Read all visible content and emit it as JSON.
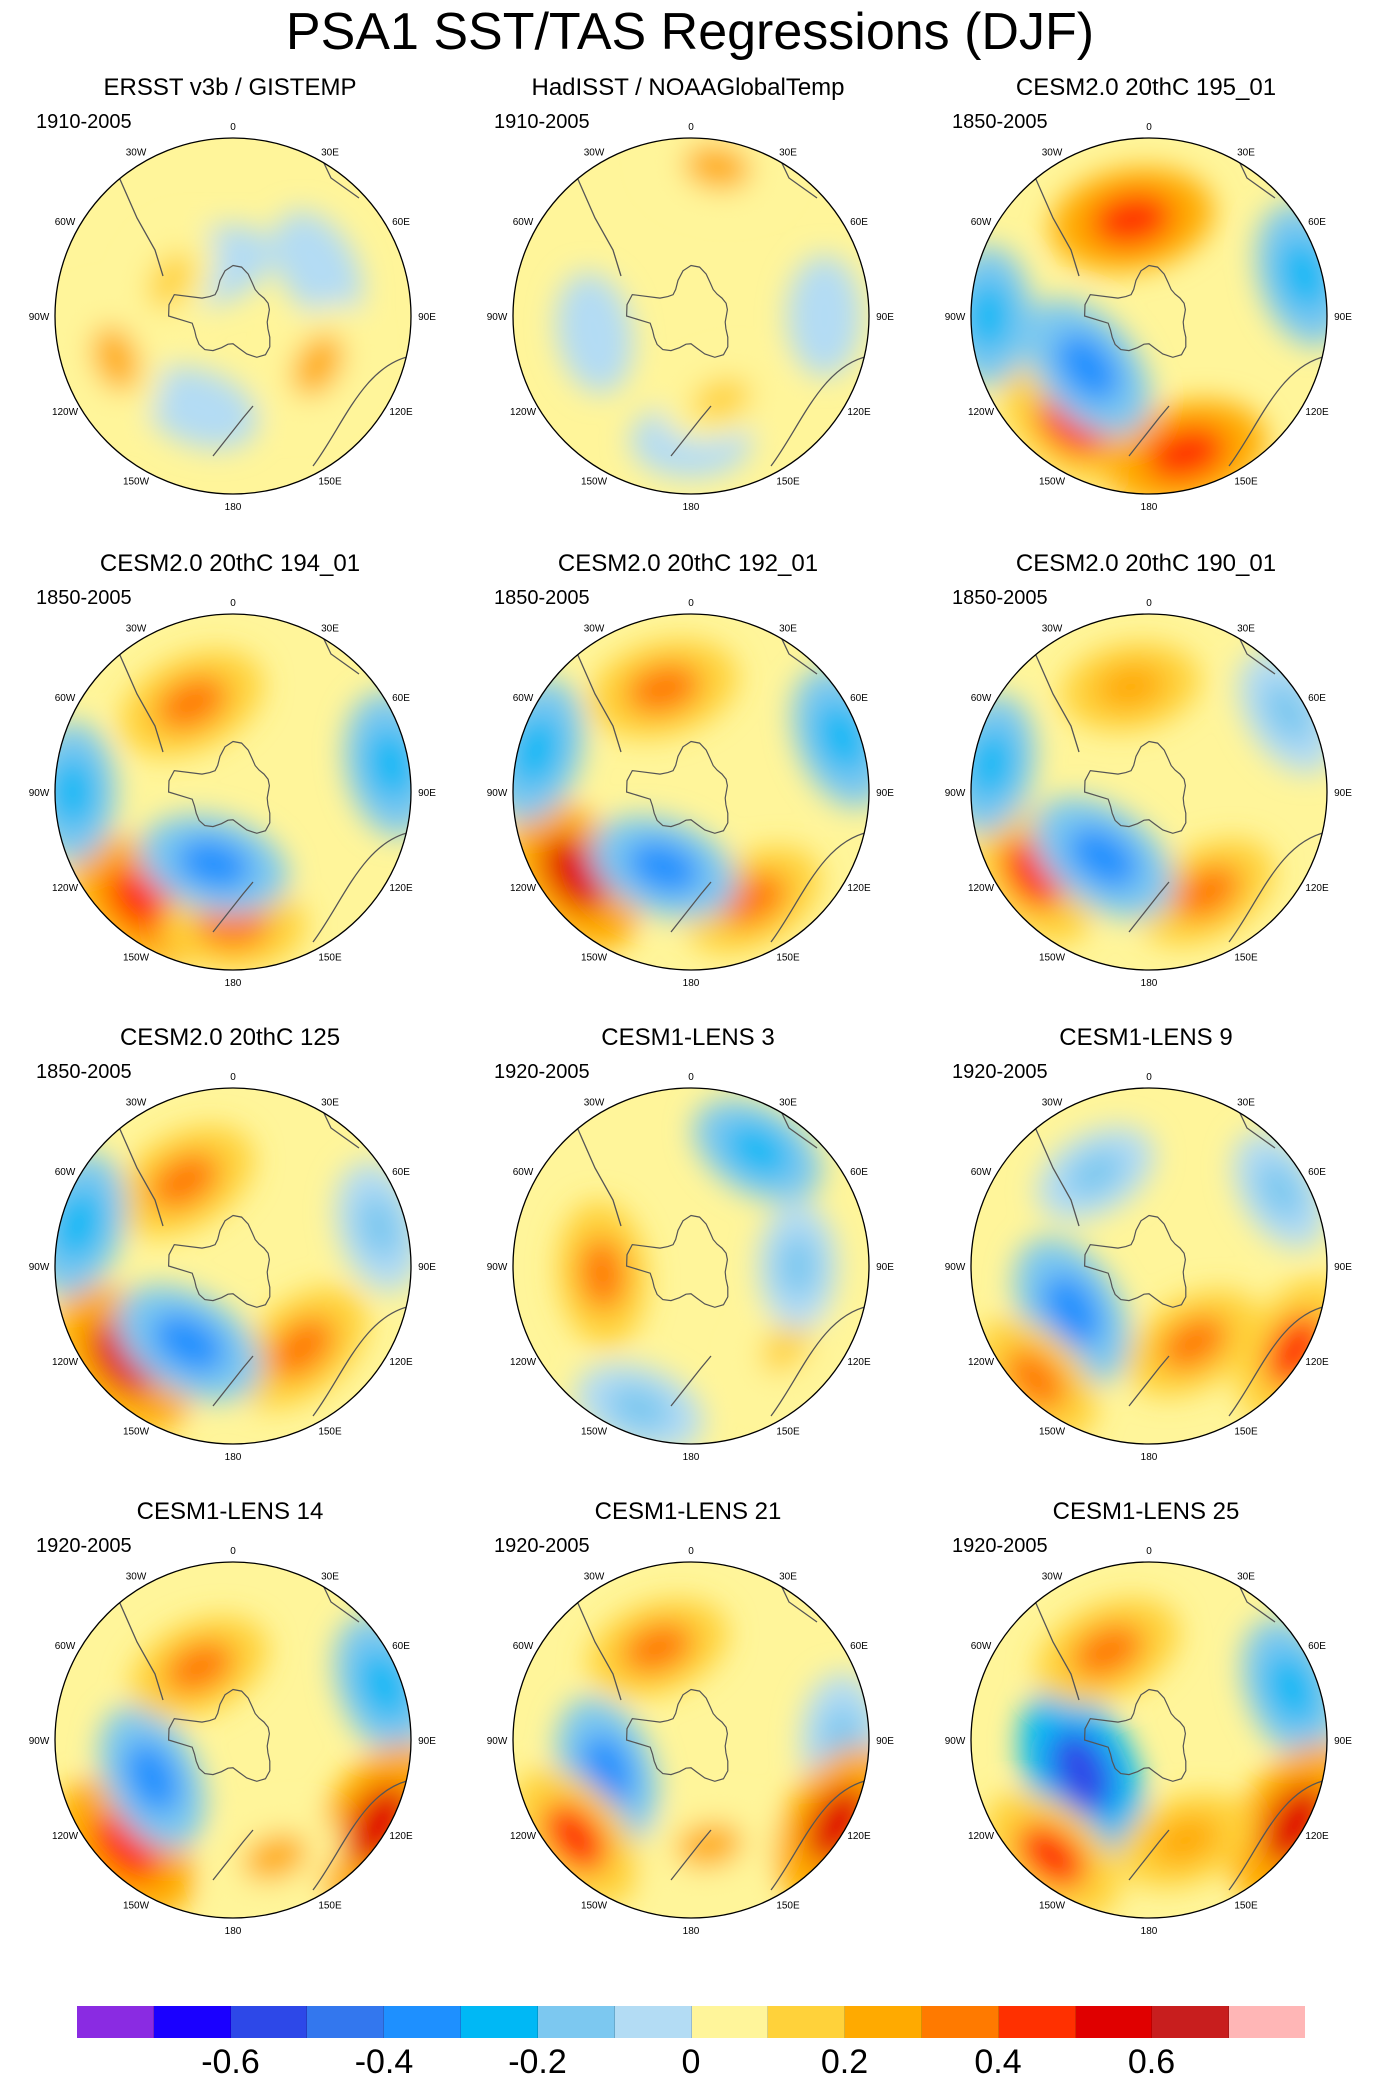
{
  "title": "PSA1 SST/TAS Regressions (DJF)",
  "lon_labels": [
    "0",
    "30E",
    "60E",
    "90E",
    "120E",
    "150E",
    "180",
    "150W",
    "120W",
    "90W",
    "60W",
    "30W"
  ],
  "colors": {
    "ocean_neutral": "#fff59a",
    "land": "#ffffff",
    "coast": "#555555"
  },
  "chart_data": {
    "type": "heatmap",
    "projection": "south-polar-stereographic",
    "field": "PSA1 SST/TAS regression",
    "season": "DJF",
    "colorbar": {
      "levels": [
        -0.7,
        -0.6,
        -0.5,
        -0.4,
        -0.3,
        -0.2,
        -0.1,
        0,
        0.1,
        0.2,
        0.3,
        0.4,
        0.5,
        0.6,
        0.7
      ],
      "colors": [
        "#8a2be2",
        "#1a00ff",
        "#2d48e8",
        "#3377ee",
        "#1e90ff",
        "#00b8f5",
        "#7cc8f0",
        "#b3dcf4",
        "#fff59a",
        "#ffd23a",
        "#ffaa00",
        "#ff7a00",
        "#ff3000",
        "#e00000",
        "#c81e1e",
        "#ffb6b6"
      ],
      "tick_labels": [
        "-0.6",
        "-0.4",
        "-0.2",
        "0",
        "0.2",
        "0.4",
        "0.6"
      ],
      "tick_values": [
        -0.6,
        -0.4,
        -0.2,
        0,
        0.2,
        0.4,
        0.6
      ]
    },
    "panels": [
      {
        "title": "ERSST v3b / GISTEMP",
        "years": "1910-2005",
        "blobs": [
          {
            "lon": 200,
            "r": 0.55,
            "v": -0.1
          },
          {
            "lon": 340,
            "r": 0.3,
            "v": -0.1
          },
          {
            "lon": 60,
            "r": 0.55,
            "v": -0.1
          },
          {
            "lon": 250,
            "r": 0.7,
            "v": 0.2
          },
          {
            "lon": 120,
            "r": 0.55,
            "v": 0.2
          },
          {
            "lon": 300,
            "r": 0.4,
            "v": 0.1
          }
        ]
      },
      {
        "title": "HadISST / NOAAGlobalTemp",
        "years": "1910-2005",
        "blobs": [
          {
            "lon": 180,
            "r": 0.7,
            "v": -0.1
          },
          {
            "lon": 260,
            "r": 0.55,
            "v": -0.1
          },
          {
            "lon": 90,
            "r": 0.75,
            "v": -0.1
          },
          {
            "lon": 10,
            "r": 0.85,
            "v": 0.2
          },
          {
            "lon": 160,
            "r": 0.5,
            "v": 0.1
          }
        ]
      },
      {
        "title": "CESM2.0 20thC 195_01",
        "years": "1850-2005",
        "blobs": [
          {
            "lon": 350,
            "r": 0.55,
            "v": 0.45
          },
          {
            "lon": 215,
            "r": 0.75,
            "v": 0.4
          },
          {
            "lon": 165,
            "r": 0.8,
            "v": 0.45
          },
          {
            "lon": 230,
            "r": 0.45,
            "v": -0.4
          },
          {
            "lon": 270,
            "r": 0.9,
            "v": -0.25
          },
          {
            "lon": 75,
            "r": 0.9,
            "v": -0.3
          }
        ]
      },
      {
        "title": "CESM2.0 20thC 194_01",
        "years": "1850-2005",
        "blobs": [
          {
            "lon": 335,
            "r": 0.55,
            "v": 0.35
          },
          {
            "lon": 220,
            "r": 0.8,
            "v": 0.45
          },
          {
            "lon": 180,
            "r": 0.75,
            "v": 0.3
          },
          {
            "lon": 195,
            "r": 0.42,
            "v": -0.35
          },
          {
            "lon": 270,
            "r": 0.9,
            "v": -0.25
          },
          {
            "lon": 80,
            "r": 0.9,
            "v": -0.3
          }
        ]
      },
      {
        "title": "CESM2.0 20thC 192_01",
        "years": "1850-2005",
        "blobs": [
          {
            "lon": 345,
            "r": 0.6,
            "v": 0.35
          },
          {
            "lon": 235,
            "r": 0.8,
            "v": 0.5
          },
          {
            "lon": 150,
            "r": 0.7,
            "v": 0.3
          },
          {
            "lon": 200,
            "r": 0.45,
            "v": -0.35
          },
          {
            "lon": 285,
            "r": 0.9,
            "v": -0.3
          },
          {
            "lon": 70,
            "r": 0.9,
            "v": -0.3
          }
        ]
      },
      {
        "title": "CESM2.0 20thC 190_01",
        "years": "1850-2005",
        "blobs": [
          {
            "lon": 350,
            "r": 0.6,
            "v": 0.25
          },
          {
            "lon": 235,
            "r": 0.8,
            "v": 0.4
          },
          {
            "lon": 150,
            "r": 0.65,
            "v": 0.3
          },
          {
            "lon": 215,
            "r": 0.45,
            "v": -0.4
          },
          {
            "lon": 280,
            "r": 0.9,
            "v": -0.25
          },
          {
            "lon": 60,
            "r": 0.9,
            "v": -0.2
          }
        ]
      },
      {
        "title": "CESM2.0 20thC 125",
        "years": "1850-2005",
        "blobs": [
          {
            "lon": 330,
            "r": 0.55,
            "v": 0.35
          },
          {
            "lon": 230,
            "r": 0.8,
            "v": 0.5
          },
          {
            "lon": 140,
            "r": 0.6,
            "v": 0.35
          },
          {
            "lon": 210,
            "r": 0.5,
            "v": -0.4
          },
          {
            "lon": 285,
            "r": 0.9,
            "v": -0.3
          },
          {
            "lon": 75,
            "r": 0.85,
            "v": -0.2
          }
        ]
      },
      {
        "title": "CESM1-LENS 3",
        "years": "1920-2005",
        "blobs": [
          {
            "lon": 265,
            "r": 0.5,
            "v": 0.3
          },
          {
            "lon": 30,
            "r": 0.75,
            "v": -0.25
          },
          {
            "lon": 200,
            "r": 0.85,
            "v": -0.2
          },
          {
            "lon": 130,
            "r": 0.7,
            "v": 0.1
          },
          {
            "lon": 90,
            "r": 0.6,
            "v": -0.15
          }
        ]
      },
      {
        "title": "CESM1-LENS 9",
        "years": "1920-2005",
        "blobs": [
          {
            "lon": 240,
            "r": 0.5,
            "v": -0.4
          },
          {
            "lon": 225,
            "r": 0.9,
            "v": 0.3
          },
          {
            "lon": 150,
            "r": 0.5,
            "v": 0.3
          },
          {
            "lon": 330,
            "r": 0.6,
            "v": -0.15
          },
          {
            "lon": 60,
            "r": 0.85,
            "v": -0.15
          },
          {
            "lon": 120,
            "r": 0.95,
            "v": 0.4
          }
        ]
      },
      {
        "title": "CESM1-LENS 14",
        "years": "1920-2005",
        "blobs": [
          {
            "lon": 225,
            "r": 0.85,
            "v": 0.45
          },
          {
            "lon": 245,
            "r": 0.5,
            "v": -0.35
          },
          {
            "lon": 335,
            "r": 0.45,
            "v": 0.3
          },
          {
            "lon": 70,
            "r": 0.9,
            "v": -0.3
          },
          {
            "lon": 120,
            "r": 0.95,
            "v": 0.55
          },
          {
            "lon": 160,
            "r": 0.7,
            "v": 0.2
          }
        ]
      },
      {
        "title": "CESM1-LENS 21",
        "years": "1920-2005",
        "blobs": [
          {
            "lon": 250,
            "r": 0.5,
            "v": -0.35
          },
          {
            "lon": 230,
            "r": 0.85,
            "v": 0.4
          },
          {
            "lon": 340,
            "r": 0.55,
            "v": 0.3
          },
          {
            "lon": 90,
            "r": 0.85,
            "v": -0.2
          },
          {
            "lon": 120,
            "r": 0.95,
            "v": 0.5
          },
          {
            "lon": 170,
            "r": 0.6,
            "v": 0.2
          }
        ]
      },
      {
        "title": "CESM1-LENS 25",
        "years": "1920-2005",
        "blobs": [
          {
            "lon": 245,
            "r": 0.42,
            "v": -0.55
          },
          {
            "lon": 220,
            "r": 0.85,
            "v": 0.4
          },
          {
            "lon": 335,
            "r": 0.55,
            "v": 0.35
          },
          {
            "lon": 70,
            "r": 0.85,
            "v": -0.3
          },
          {
            "lon": 120,
            "r": 0.95,
            "v": 0.55
          },
          {
            "lon": 160,
            "r": 0.6,
            "v": 0.25
          }
        ]
      }
    ]
  }
}
